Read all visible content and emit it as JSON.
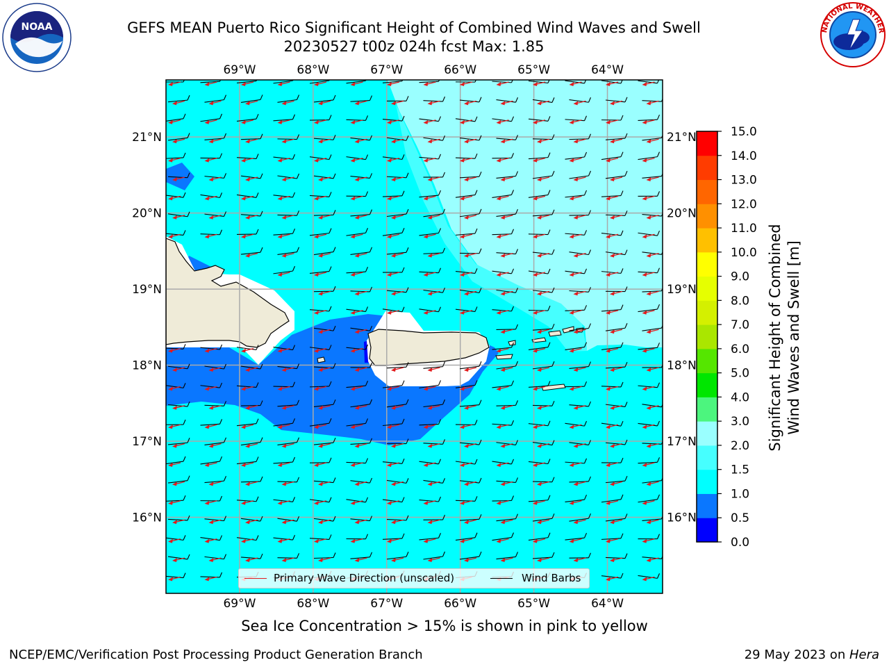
{
  "header": {
    "title_line1": "GEFS MEAN Puerto Rico Significant Height of Combined Wind Waves and Swell",
    "title_line2": "20230527 t00z 024h fcst   Max: 1.85"
  },
  "logos": {
    "left": "noaa-logo",
    "left_text": "NOAA",
    "left_ring_text": "NATIONAL OCEANIC AND ATMOSPHERIC ADMINISTRATION · U.S. DEPARTMENT OF COMMERCE",
    "right": "nws-logo",
    "right_ring_text": "NATIONAL WEATHER SERVICE"
  },
  "map": {
    "lon_ticks": [
      "69°W",
      "68°W",
      "67°W",
      "66°W",
      "65°W",
      "64°W"
    ],
    "lat_ticks": [
      "21°N",
      "20°N",
      "19°N",
      "18°N",
      "17°N",
      "16°N"
    ],
    "lon_values": [
      -69,
      -68,
      -67,
      -66,
      -65,
      -64
    ],
    "lat_values": [
      21,
      20,
      19,
      18,
      17,
      16
    ],
    "lon_range": [
      -70.0,
      -63.25
    ],
    "lat_range": [
      15.0,
      21.75
    ],
    "ocean_color": "#00ffff",
    "land_color": "#efebd8",
    "arrow_color": "#e31a1c",
    "barb_color": "#000000"
  },
  "legend": {
    "primary_label": "Primary Wave Direction (unscaled)",
    "barb_label": "Wind Barbs"
  },
  "colorbar": {
    "label_line1": "Significant Height of Combined",
    "label_line2": "Wind Waves and Swell [m]",
    "ticks": [
      "0.0",
      "0.5",
      "1.0",
      "1.5",
      "2.0",
      "3.0",
      "4.0",
      "5.0",
      "6.0",
      "7.0",
      "8.0",
      "9.0",
      "10.0",
      "11.0",
      "12.0",
      "13.0",
      "14.0",
      "15.0"
    ],
    "colors": [
      "#0000ff",
      "#0a77ff",
      "#00ffff",
      "#46ffff",
      "#9affff",
      "#4cf57e",
      "#00e600",
      "#55e600",
      "#aae600",
      "#d4f000",
      "#e6ff00",
      "#ffff00",
      "#ffc000",
      "#ff9000",
      "#ff6600",
      "#ff3c00",
      "#ff0000"
    ]
  },
  "caption": "Sea Ice Concentration > 15% is shown in pink to yellow",
  "footer": {
    "left": "NCEP/EMC/Verification Post Processing Product Generation Branch",
    "right_prefix": "29 May 2023 on ",
    "right_host": "Hera"
  }
}
